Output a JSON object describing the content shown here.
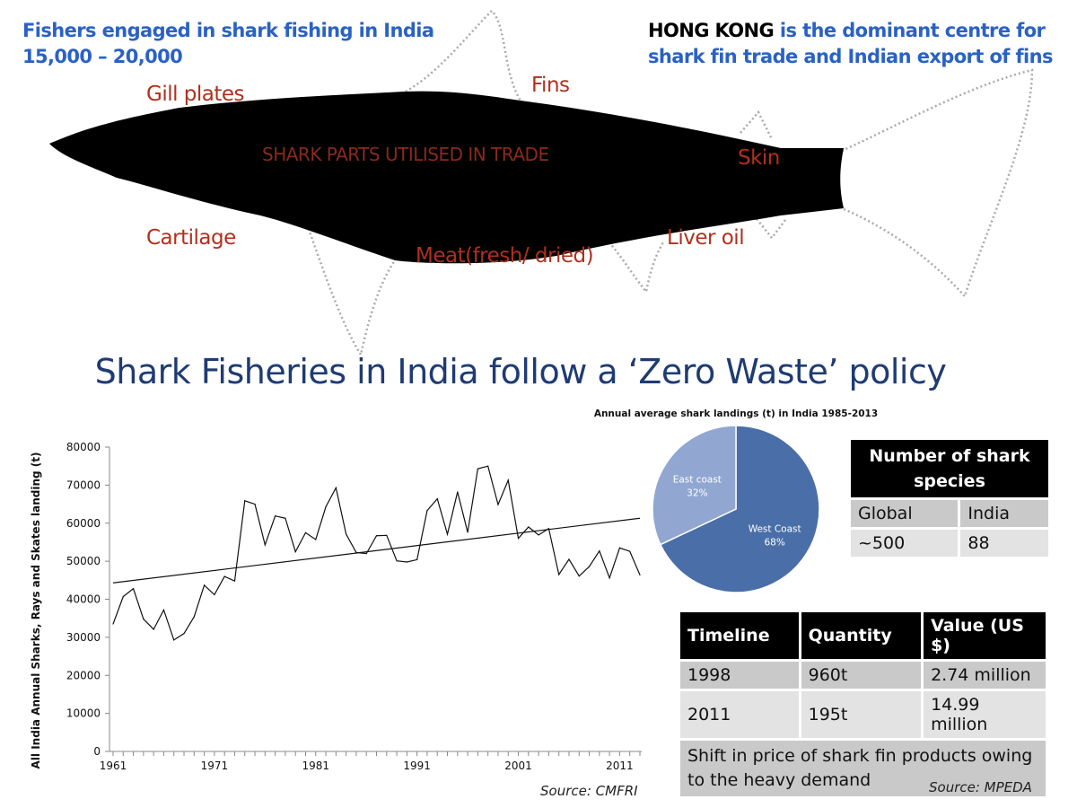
{
  "top_left": {
    "line1": "Fishers engaged in shark fishing in India",
    "line2": "15,000 – 20,000"
  },
  "top_right": {
    "highlight": "HONG KONG",
    "line1_rest": " is the dominant centre for",
    "line2": "shark fin trade and Indian export of fins"
  },
  "shark_parts": {
    "title": "SHARK PARTS UTILISED IN TRADE",
    "gill_plates": "Gill plates",
    "fins": "Fins",
    "skin": "Skin",
    "cartilage": "Cartilage",
    "meat": "Meat(fresh/ dried)",
    "liver_oil": "Liver oil"
  },
  "heading": "Shark Fisheries in India follow a ‘Zero Waste’  policy",
  "colors": {
    "heading": "#1f3b73",
    "blue_text": "#2a62c4",
    "part_labels": "#b0301c",
    "west_coast": "#4a6ea8",
    "east_coast": "#91a7d2"
  },
  "chart_data": [
    {
      "type": "line",
      "ylabel": "All India Annual Sharks, Rays and Skates landing (t)",
      "xlabel": "",
      "ylim": [
        0,
        80000
      ],
      "yticks": [
        "0",
        "10000",
        "20000",
        "30000",
        "40000",
        "50000",
        "60000",
        "70000",
        "80000"
      ],
      "xticks": [
        "1961",
        "1971",
        "1981",
        "1991",
        "2001",
        "2011"
      ],
      "x": [
        1961,
        1962,
        1963,
        1964,
        1965,
        1966,
        1967,
        1968,
        1969,
        1970,
        1971,
        1972,
        1973,
        1974,
        1975,
        1976,
        1977,
        1978,
        1979,
        1980,
        1981,
        1982,
        1983,
        1984,
        1985,
        1986,
        1987,
        1988,
        1989,
        1990,
        1991,
        1992,
        1993,
        1994,
        1995,
        1996,
        1997,
        1998,
        1999,
        2000,
        2001,
        2002,
        2003,
        2004,
        2005,
        2006,
        2007,
        2008,
        2009,
        2010,
        2011,
        2012,
        2013
      ],
      "values": [
        33500,
        40700,
        42800,
        34800,
        32100,
        37200,
        29300,
        31000,
        35400,
        43700,
        41200,
        46000,
        44800,
        65900,
        65000,
        54300,
        61900,
        61300,
        52500,
        57500,
        55700,
        64300,
        69300,
        57100,
        52300,
        52000,
        56700,
        56800,
        50100,
        49800,
        50400,
        63300,
        66400,
        57100,
        68200,
        57600,
        74300,
        75000,
        64900,
        71300,
        56000,
        59000,
        56900,
        58600,
        46500,
        50500,
        46100,
        48600,
        52700,
        45600,
        53500,
        52600,
        46400
      ],
      "trendline": {
        "start": [
          1961,
          44300
        ],
        "end": [
          2013,
          61300
        ]
      },
      "grid": false,
      "source": "Source: CMFRI"
    },
    {
      "type": "pie",
      "title": "Annual average shark landings (t) in India 1985-2013",
      "slices": [
        {
          "label": "West Coast",
          "value": 68,
          "text": "68%"
        },
        {
          "label": "East coast",
          "value": 32,
          "text": "32%"
        }
      ]
    }
  ],
  "species_table": {
    "header": "Number of shark species",
    "columns": [
      "Global",
      "India"
    ],
    "values": [
      "~500",
      "88"
    ]
  },
  "trade_table": {
    "columns": [
      "Timeline",
      "Quantity",
      "Value (US $)"
    ],
    "rows": [
      [
        "1998",
        "960t",
        "2.74 million"
      ],
      [
        "2011",
        "195t",
        "14.99 million"
      ]
    ],
    "note": "Shift in price of shark fin products owing to the heavy demand",
    "source": "Source: MPEDA"
  }
}
